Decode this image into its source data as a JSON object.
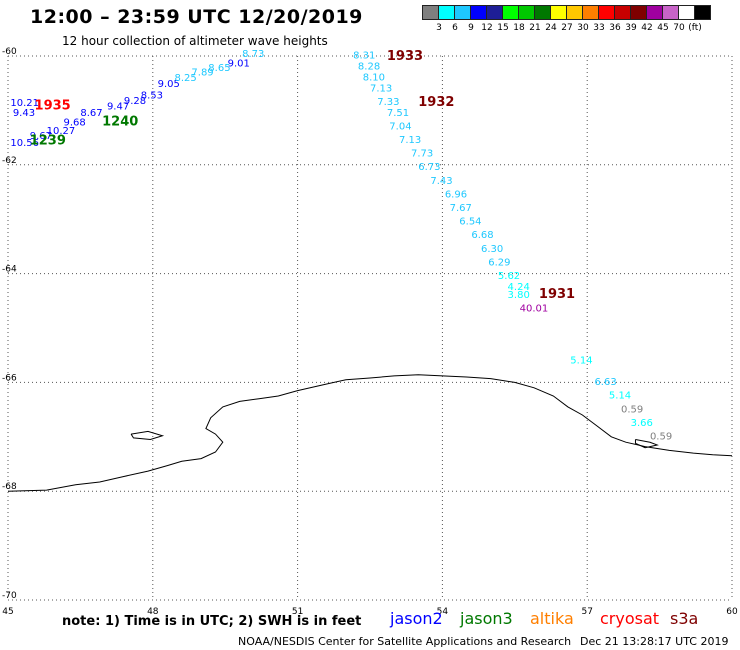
{
  "header": {
    "title": "12:00 – 23:59 UTC 12/20/2019",
    "subtitle": "12 hour collection of altimeter wave heights"
  },
  "colorbar": {
    "colors": [
      "#7f7f7f",
      "#00ffff",
      "#1ec8ff",
      "#0000ff",
      "#1e1e96",
      "#00ff00",
      "#00c800",
      "#007800",
      "#ffff00",
      "#ffc800",
      "#ff7f00",
      "#ff0000",
      "#c80000",
      "#7f0000",
      "#a000a0",
      "#c864c8",
      "#ffffff",
      "#000000"
    ],
    "labels": [
      "3",
      "6",
      "9",
      "12",
      "15",
      "18",
      "21",
      "24",
      "27",
      "30",
      "33",
      "36",
      "39",
      "42",
      "45",
      "70",
      "(ft)"
    ]
  },
  "chart_data": {
    "type": "scatter",
    "title": "12:00 – 23:59 UTC 12/20/2019",
    "subtitle": "12 hour collection of altimeter wave heights",
    "xlim": [
      45,
      60
    ],
    "ylim": [
      -70,
      -60
    ],
    "x_ticks": [
      "45",
      "48",
      "51",
      "54",
      "57",
      "60"
    ],
    "y_ticks": [
      "-60",
      "-62",
      "-64",
      "-66",
      "-68",
      "-70"
    ],
    "grid": true,
    "points": [
      {
        "x": 45.05,
        "y": -60.92,
        "label": "10.21",
        "color": "#0000ff"
      },
      {
        "x": 45.1,
        "y": -61.1,
        "label": "9.43",
        "color": "#0000ff"
      },
      {
        "x": 45.05,
        "y": -61.65,
        "label": "10.56",
        "color": "#0000ff"
      },
      {
        "x": 45.45,
        "y": -61.53,
        "label": "9.67",
        "color": "#0000ff"
      },
      {
        "x": 45.8,
        "y": -61.43,
        "label": "10.27",
        "color": "#0000ff"
      },
      {
        "x": 46.15,
        "y": -61.28,
        "label": "9.68",
        "color": "#0000ff"
      },
      {
        "x": 46.5,
        "y": -61.1,
        "label": "8.67",
        "color": "#0000ff"
      },
      {
        "x": 47.05,
        "y": -60.98,
        "label": "9.47",
        "color": "#0000ff"
      },
      {
        "x": 47.4,
        "y": -60.88,
        "label": "9.28",
        "color": "#0000ff"
      },
      {
        "x": 47.75,
        "y": -60.78,
        "label": "8.53",
        "color": "#0000ff"
      },
      {
        "x": 48.1,
        "y": -60.57,
        "label": "9.05",
        "color": "#0000ff"
      },
      {
        "x": 48.45,
        "y": -60.46,
        "label": "8.25",
        "color": "#1ec8ff"
      },
      {
        "x": 48.8,
        "y": -60.36,
        "label": "7.89",
        "color": "#1ec8ff"
      },
      {
        "x": 49.15,
        "y": -60.28,
        "label": "8.65",
        "color": "#1ec8ff"
      },
      {
        "x": 49.55,
        "y": -60.19,
        "label": "9.01",
        "color": "#0000ff"
      },
      {
        "x": 49.85,
        "y": -60.02,
        "label": "8.73",
        "color": "#1ec8ff"
      },
      {
        "x": 52.15,
        "y": -60.05,
        "label": "8.31",
        "color": "#1ec8ff"
      },
      {
        "x": 52.25,
        "y": -60.25,
        "label": "8.28",
        "color": "#1ec8ff"
      },
      {
        "x": 52.35,
        "y": -60.45,
        "label": "8.10",
        "color": "#1ec8ff"
      },
      {
        "x": 52.5,
        "y": -60.65,
        "label": "7.13",
        "color": "#1ec8ff"
      },
      {
        "x": 52.65,
        "y": -60.9,
        "label": "7.33",
        "color": "#1ec8ff"
      },
      {
        "x": 52.85,
        "y": -61.1,
        "label": "7.51",
        "color": "#1ec8ff"
      },
      {
        "x": 52.9,
        "y": -61.35,
        "label": "7.04",
        "color": "#1ec8ff"
      },
      {
        "x": 53.1,
        "y": -61.6,
        "label": "7.13",
        "color": "#1ec8ff"
      },
      {
        "x": 53.35,
        "y": -61.85,
        "label": "7.73",
        "color": "#1ec8ff"
      },
      {
        "x": 53.5,
        "y": -62.1,
        "label": "6.73",
        "color": "#1ec8ff"
      },
      {
        "x": 53.75,
        "y": -62.35,
        "label": "7.43",
        "color": "#1ec8ff"
      },
      {
        "x": 54.05,
        "y": -62.6,
        "label": "6.96",
        "color": "#1ec8ff"
      },
      {
        "x": 54.15,
        "y": -62.85,
        "label": "7.67",
        "color": "#1ec8ff"
      },
      {
        "x": 54.35,
        "y": -63.1,
        "label": "6.54",
        "color": "#1ec8ff"
      },
      {
        "x": 54.6,
        "y": -63.35,
        "label": "6.68",
        "color": "#1ec8ff"
      },
      {
        "x": 54.8,
        "y": -63.6,
        "label": "6.30",
        "color": "#1ec8ff"
      },
      {
        "x": 54.95,
        "y": -63.85,
        "label": "6.29",
        "color": "#1ec8ff"
      },
      {
        "x": 55.15,
        "y": -64.1,
        "label": "5.62",
        "color": "#00ffff"
      },
      {
        "x": 55.35,
        "y": -64.3,
        "label": "4.24",
        "color": "#00ffff"
      },
      {
        "x": 55.35,
        "y": -64.45,
        "label": "3.80",
        "color": "#00ffff"
      },
      {
        "x": 55.6,
        "y": -64.7,
        "label": "40.01",
        "color": "#a000a0"
      },
      {
        "x": 56.65,
        "y": -65.65,
        "label": "5.14",
        "color": "#00ffff"
      },
      {
        "x": 57.15,
        "y": -66.05,
        "label": "6.63",
        "color": "#1ec8ff"
      },
      {
        "x": 57.45,
        "y": -66.3,
        "label": "5.14",
        "color": "#00ffff"
      },
      {
        "x": 57.7,
        "y": -66.55,
        "label": "0.59",
        "color": "#7f7f7f"
      },
      {
        "x": 57.9,
        "y": -66.8,
        "label": "3.66",
        "color": "#00ffff"
      },
      {
        "x": 58.3,
        "y": -67.05,
        "label": "0.59",
        "color": "#7f7f7f"
      }
    ],
    "time_labels": [
      {
        "x": 45.55,
        "y": -60.98,
        "label": "1935",
        "color": "#ff0000"
      },
      {
        "x": 46.95,
        "y": -61.28,
        "label": "1240",
        "color": "#007800"
      },
      {
        "x": 45.45,
        "y": -61.63,
        "label": "1239",
        "color": "#007800"
      },
      {
        "x": 52.85,
        "y": -60.07,
        "label": "1933",
        "color": "#7f0000"
      },
      {
        "x": 53.5,
        "y": -60.92,
        "label": "1932",
        "color": "#7f0000"
      },
      {
        "x": 56.0,
        "y": -64.45,
        "label": "1931",
        "color": "#7f0000"
      }
    ]
  },
  "coastline": [
    [
      45,
      -68.0
    ],
    [
      45.8,
      -67.98
    ],
    [
      46.4,
      -67.88
    ],
    [
      46.9,
      -67.83
    ],
    [
      47.4,
      -67.73
    ],
    [
      47.9,
      -67.63
    ],
    [
      48.3,
      -67.53
    ],
    [
      48.6,
      -67.45
    ],
    [
      49.0,
      -67.4
    ],
    [
      49.3,
      -67.28
    ],
    [
      49.45,
      -67.1
    ],
    [
      49.3,
      -66.95
    ],
    [
      49.1,
      -66.85
    ],
    [
      49.2,
      -66.65
    ],
    [
      49.45,
      -66.45
    ],
    [
      49.8,
      -66.35
    ],
    [
      50.2,
      -66.3
    ],
    [
      50.6,
      -66.25
    ],
    [
      51.0,
      -66.15
    ],
    [
      51.5,
      -66.05
    ],
    [
      52.0,
      -65.95
    ],
    [
      52.5,
      -65.92
    ],
    [
      53.0,
      -65.88
    ],
    [
      53.5,
      -65.86
    ],
    [
      54.0,
      -65.88
    ],
    [
      54.5,
      -65.9
    ],
    [
      55.0,
      -65.93
    ],
    [
      55.5,
      -66.0
    ],
    [
      55.9,
      -66.1
    ],
    [
      56.3,
      -66.25
    ],
    [
      56.6,
      -66.45
    ],
    [
      56.9,
      -66.6
    ],
    [
      57.2,
      -66.8
    ],
    [
      57.5,
      -67.0
    ],
    [
      57.8,
      -67.1
    ],
    [
      58.2,
      -67.18
    ],
    [
      58.7,
      -67.25
    ],
    [
      59.2,
      -67.3
    ],
    [
      59.6,
      -67.33
    ],
    [
      60,
      -67.35
    ]
  ],
  "notes": {
    "note_text": "note: 1) Time is in UTC; 2) SWH is in feet",
    "satellites": [
      {
        "name": "jason2",
        "color": "#0000ff"
      },
      {
        "name": "jason3",
        "color": "#007800"
      },
      {
        "name": "altika",
        "color": "#ff7f00"
      },
      {
        "name": "cryosat",
        "color": "#ff0000"
      },
      {
        "name": "s3a",
        "color": "#7f0000"
      }
    ],
    "credit": "NOAA/NESDIS Center for Satellite Applications and Research",
    "timestamp": "Dec 21 13:28:17 UTC 2019"
  }
}
